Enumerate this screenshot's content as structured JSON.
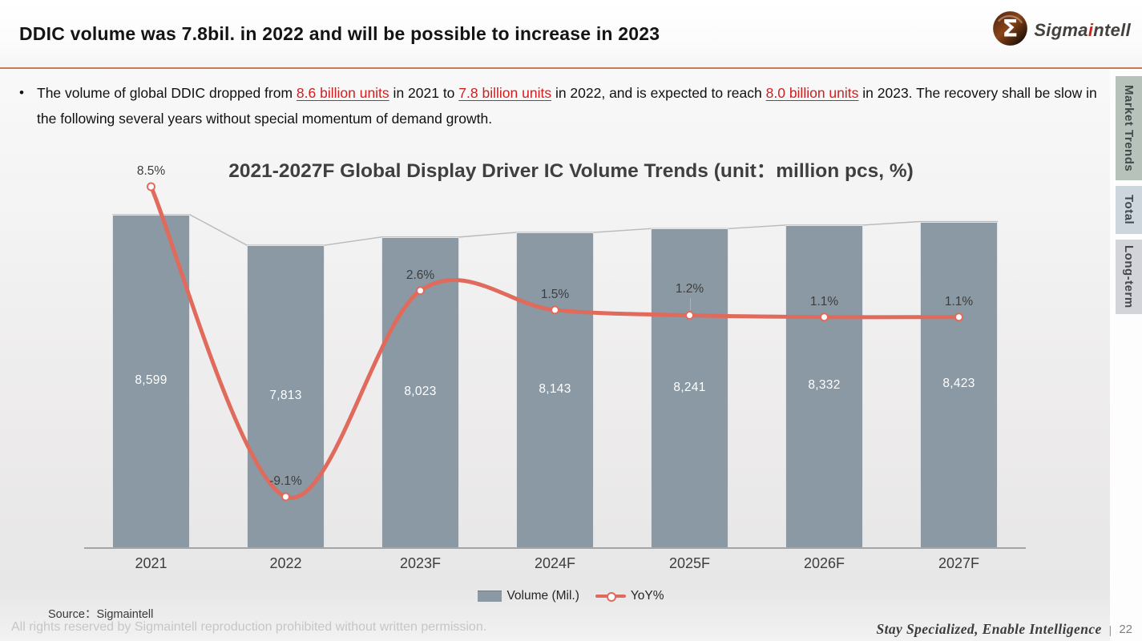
{
  "header": {
    "title": "DDIC volume was 7.8bil. in 2022 and will be possible to increase in 2023",
    "logo": {
      "icon": "sigmaintell-sphere-sigma",
      "text_pre": "Sigma",
      "text_red": "i",
      "text_post": "ntell"
    }
  },
  "bullet": {
    "segments": [
      {
        "text": "The volume of global DDIC dropped from ",
        "link": false
      },
      {
        "text": "8.6 billion units",
        "link": true
      },
      {
        "text": " in 2021 to ",
        "link": false
      },
      {
        "text": "7.8 billion units",
        "link": true
      },
      {
        "text": " in 2022, and is expected to reach ",
        "link": false
      },
      {
        "text": "8.0 billion units",
        "link": true
      },
      {
        "text": " in 2023. The recovery shall be slow in the following several years without special momentum of demand growth.",
        "link": false
      }
    ]
  },
  "side_tabs": [
    {
      "label": "Market Trends",
      "active": true
    },
    {
      "label": "Total",
      "active": false
    },
    {
      "label": "Long-term",
      "active": false
    }
  ],
  "chart_data": {
    "type": "bar",
    "title": "2021-2027F Global Display Driver IC Volume Trends (unit：million pcs, %)",
    "categories": [
      "2021",
      "2022",
      "2023F",
      "2024F",
      "2025F",
      "2026F",
      "2027F"
    ],
    "series": [
      {
        "name": "Volume (Mil.)",
        "type": "bar",
        "color": "#8a99a3",
        "values": [
          8599,
          7813,
          8023,
          8143,
          8241,
          8332,
          8423
        ],
        "labels": [
          "8,599",
          "7,813",
          "8,023",
          "8,143",
          "8,241",
          "8,332",
          "8,423"
        ]
      },
      {
        "name": "YoY%",
        "type": "line",
        "color": "#e06a5c",
        "values": [
          8.5,
          -9.1,
          2.6,
          1.5,
          1.2,
          1.1,
          1.1
        ],
        "labels": [
          "8.5%",
          "-9.1%",
          "2.6%",
          "1.5%",
          "1.2%",
          "1.1%",
          "1.1%"
        ]
      }
    ],
    "bar_axis_range": [
      0,
      8599
    ],
    "line_axis_range": [
      -12,
      10
    ],
    "grid": false,
    "legend_position": "bottom"
  },
  "legend": [
    {
      "label": "Volume (Mil.)",
      "swatch": "bar"
    },
    {
      "label": "YoY%",
      "swatch": "line"
    }
  ],
  "source": "Source：Sigmaintell",
  "footer": {
    "rights": "All rights reserved by Sigmaintell reproduction prohibited without written permission.",
    "slogan": "Stay Specialized, Enable Intelligence",
    "separator": "|",
    "page": "22"
  }
}
